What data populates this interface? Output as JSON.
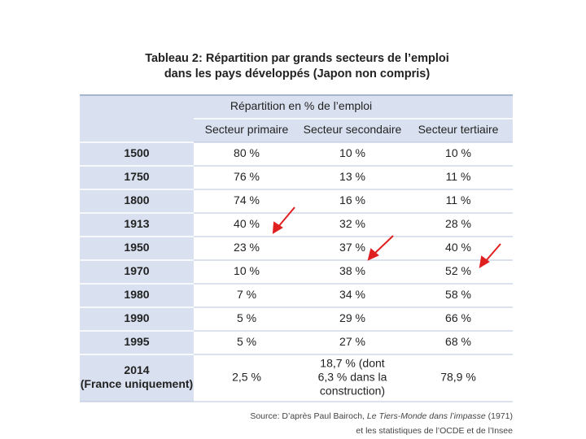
{
  "title": [
    "Tableau 2: Répartition par grands secteurs de l’emploi",
    "dans les pays développés (Japon non compris)"
  ],
  "table": {
    "group_header": "Répartition en % de l’emploi",
    "columns": [
      "Secteur primaire",
      "Secteur secondaire",
      "Secteur tertiaire"
    ],
    "rows": [
      [
        [
          "1500"
        ],
        [
          "80 %"
        ],
        [
          "10 %"
        ],
        [
          "10 %"
        ]
      ],
      [
        [
          "1750"
        ],
        [
          "76 %"
        ],
        [
          "13 %"
        ],
        [
          "11 %"
        ]
      ],
      [
        [
          "1800"
        ],
        [
          "74 %"
        ],
        [
          "16 %"
        ],
        [
          "11 %"
        ]
      ],
      [
        [
          "1913"
        ],
        [
          "40 %"
        ],
        [
          "32 %"
        ],
        [
          "28 %"
        ]
      ],
      [
        [
          "1950"
        ],
        [
          "23 %"
        ],
        [
          "37 %"
        ],
        [
          "40 %"
        ]
      ],
      [
        [
          "1970"
        ],
        [
          "10 %"
        ],
        [
          "38 %"
        ],
        [
          "52 %"
        ]
      ],
      [
        [
          "1980"
        ],
        [
          "7 %"
        ],
        [
          "34 %"
        ],
        [
          "58 %"
        ]
      ],
      [
        [
          "1990"
        ],
        [
          "5 %"
        ],
        [
          "29 %"
        ],
        [
          "66 %"
        ]
      ],
      [
        [
          "1995"
        ],
        [
          "5 %"
        ],
        [
          "27 %"
        ],
        [
          "68 %"
        ]
      ],
      [
        [
          "2014",
          "(France uniquement)"
        ],
        [
          "2,5 %"
        ],
        [
          "18,7 % (dont",
          "6,3 % dans la",
          "construction)"
        ],
        [
          "78,9 %"
        ]
      ]
    ]
  },
  "source": [
    [
      "Source: D’après Paul Bairoch, ",
      "Le Tiers-Monde dans l’impasse",
      " (1971)"
    ],
    [
      "et les statistiques de l’OCDE et de l’Insee"
    ]
  ]
}
